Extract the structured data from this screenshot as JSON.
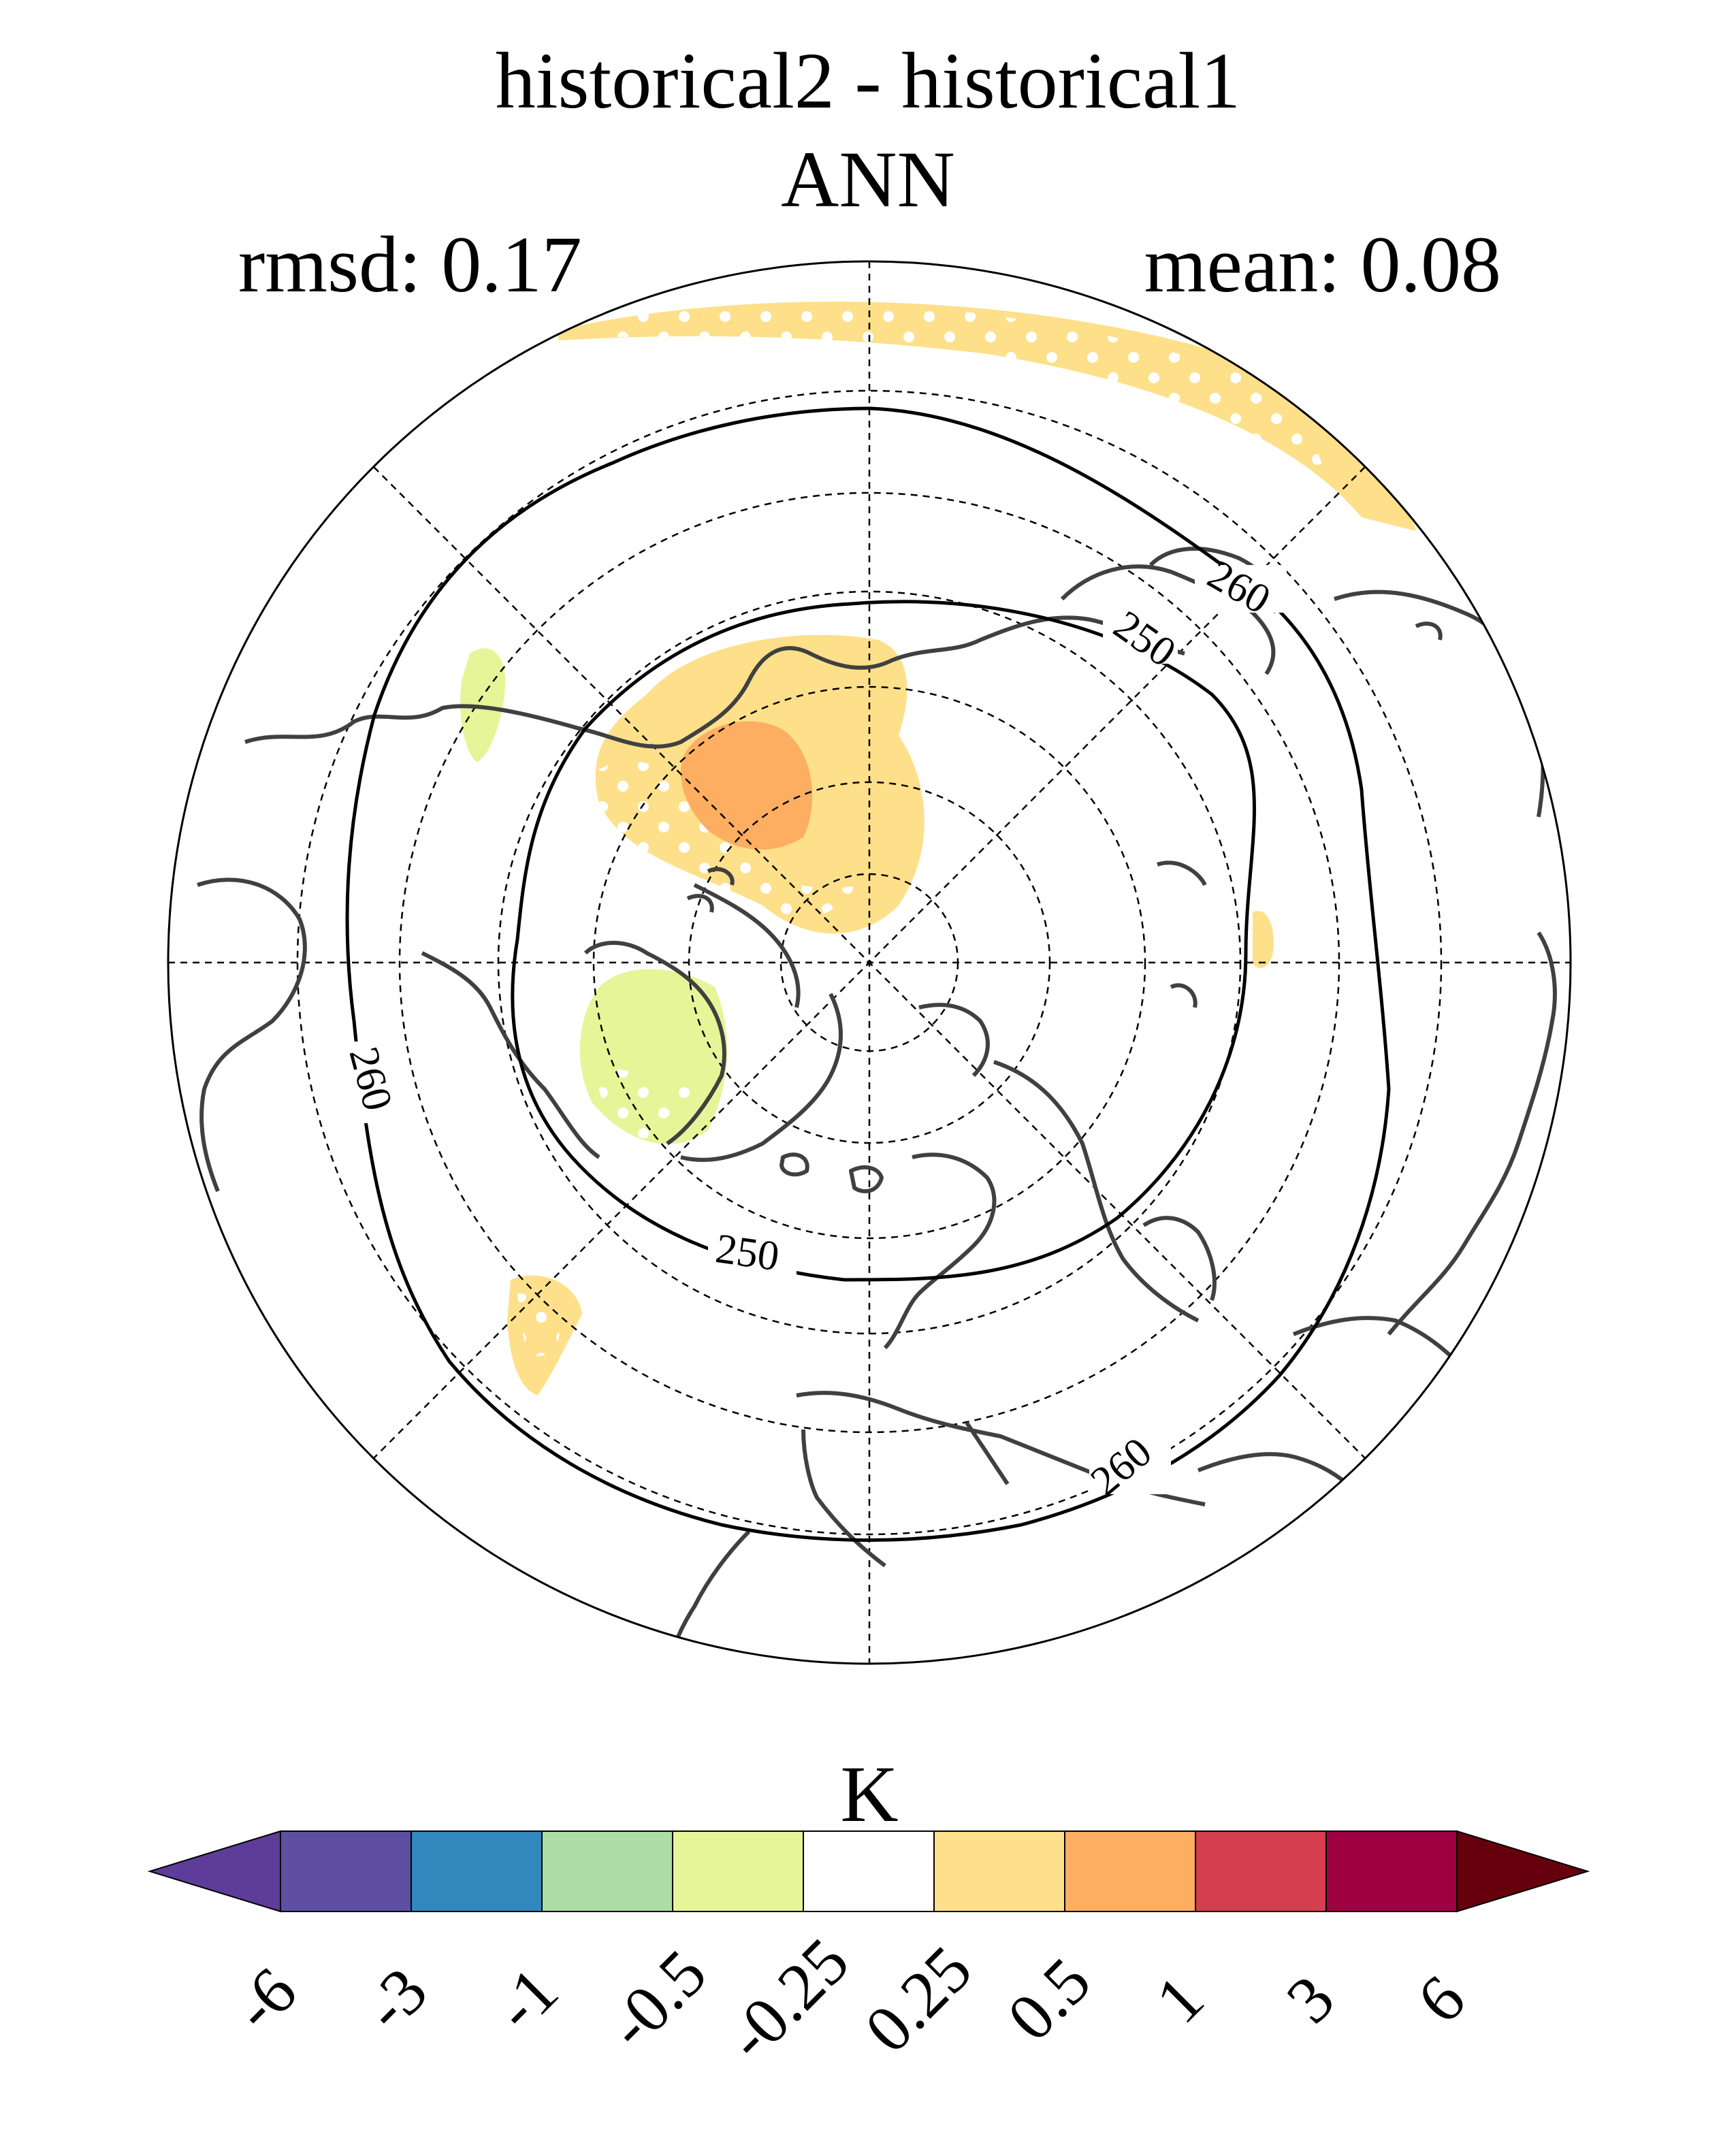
{
  "title": {
    "line1": "historical2 - historical1",
    "line2": "ANN"
  },
  "stats": {
    "rmsd": "rmsd: 0.17",
    "mean": "mean: 0.08"
  },
  "map": {
    "projection": "north-polar-stereographic",
    "contour_labels": [
      "260",
      "250",
      "250",
      "260",
      "260"
    ],
    "land_color": "#404040",
    "grid": "dashed"
  },
  "colorbar": {
    "unit": "K",
    "ticks": [
      "-6",
      "-3",
      "-1",
      "-0.5",
      "-0.25",
      "0.25",
      "0.5",
      "1",
      "3",
      "6"
    ],
    "colors": [
      "#5e3c99",
      "#5e4fa2",
      "#3288bd",
      "#abdda4",
      "#e6f598",
      "#ffffff",
      "#fee08b",
      "#fdae61",
      "#d53e4f",
      "#9e0142",
      "#67000d"
    ]
  }
}
